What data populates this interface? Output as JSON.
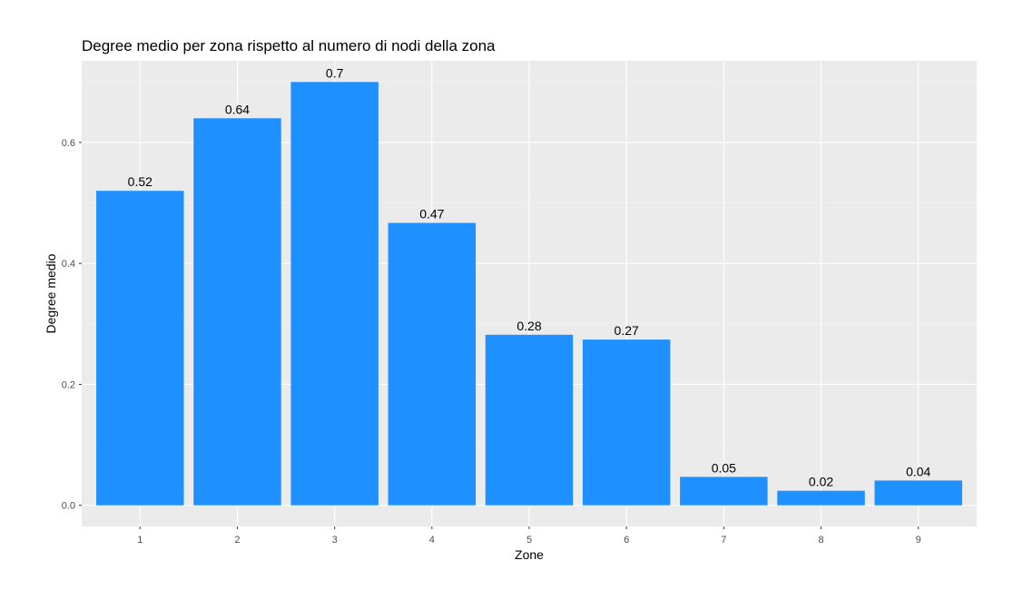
{
  "chart_data": {
    "type": "bar",
    "title": "Degree medio per zona rispetto al numero di nodi della zona",
    "xlabel": "Zone",
    "ylabel": "Degree medio",
    "categories": [
      "1",
      "2",
      "3",
      "4",
      "5",
      "6",
      "7",
      "8",
      "9"
    ],
    "values": [
      0.52,
      0.64,
      0.7,
      0.467,
      0.282,
      0.274,
      0.047,
      0.024,
      0.041
    ],
    "data_labels": [
      "0.52",
      "0.64",
      "0.7",
      "0.47",
      "0.28",
      "0.27",
      "0.05",
      "0.02",
      "0.04"
    ],
    "y_ticks": [
      "0.0",
      "0.2",
      "0.4",
      "0.6"
    ],
    "y_tick_values": [
      0.0,
      0.2,
      0.4,
      0.6
    ],
    "ylim": [
      -0.035,
      0.735
    ],
    "grid": true,
    "legend": "none",
    "colors": {
      "bar": "#1E90FF",
      "panel_background": "#EBEBEB",
      "grid_major": "#FFFFFF",
      "grid_minor": "#F5F5F5"
    }
  }
}
